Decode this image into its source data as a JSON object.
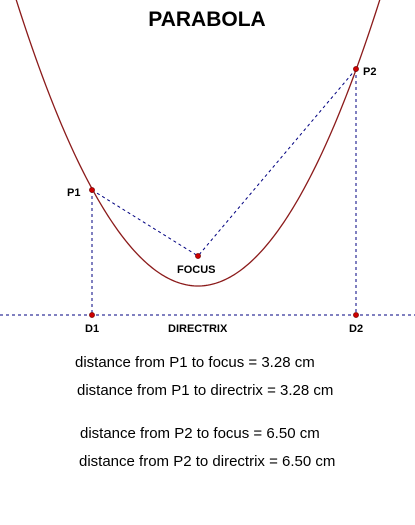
{
  "title": "PARABOLA",
  "labels": {
    "p1": "P1",
    "p2": "P2",
    "focus": "FOCUS",
    "d1": "D1",
    "d2": "D2",
    "directrix": "DIRECTRIX"
  },
  "measurements": [
    "distance from P1 to focus = 3.28 cm",
    "distance from P1 to directrix = 3.28 cm",
    "distance from P2 to focus = 6.50 cm",
    "distance from P2 to directrix = 6.50 cm"
  ],
  "colors": {
    "curve": "#8b1a1a",
    "points": "#cc0000",
    "lines": "#000080"
  }
}
